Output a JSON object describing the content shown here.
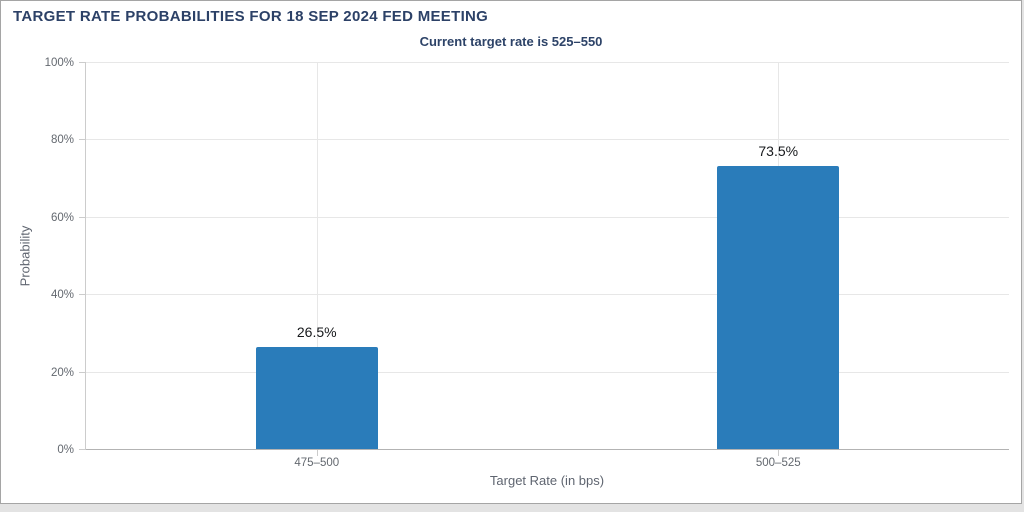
{
  "chart_data": {
    "type": "bar",
    "title": "TARGET RATE PROBABILITIES FOR 18 SEP 2024 FED MEETING",
    "subtitle": "Current target rate is 525–550",
    "xlabel": "Target Rate (in bps)",
    "ylabel": "Probability",
    "categories": [
      "475–500",
      "500–525"
    ],
    "values": [
      26.5,
      73.5
    ],
    "value_labels": [
      "26.5%",
      "73.5%"
    ],
    "ylim": [
      0,
      100
    ],
    "yticks": [
      "0%",
      "20%",
      "40%",
      "60%",
      "80%",
      "100%"
    ],
    "grid": true,
    "legend": false
  },
  "colors": {
    "bar_color": "#2a7cba",
    "title_color": "#2c4167",
    "subtitle_color": "#2d4368",
    "axis_text": "#5f6570",
    "tick_text": "#63686f",
    "value_color": "#17191c",
    "grid_color": "#e7e7e7",
    "axis_line": "#b3b3b3",
    "axis_light": "#cccccc",
    "border_color": "#a5a5a5",
    "page_bg": "#e3e3e3",
    "card_bg": "#ffffff"
  }
}
